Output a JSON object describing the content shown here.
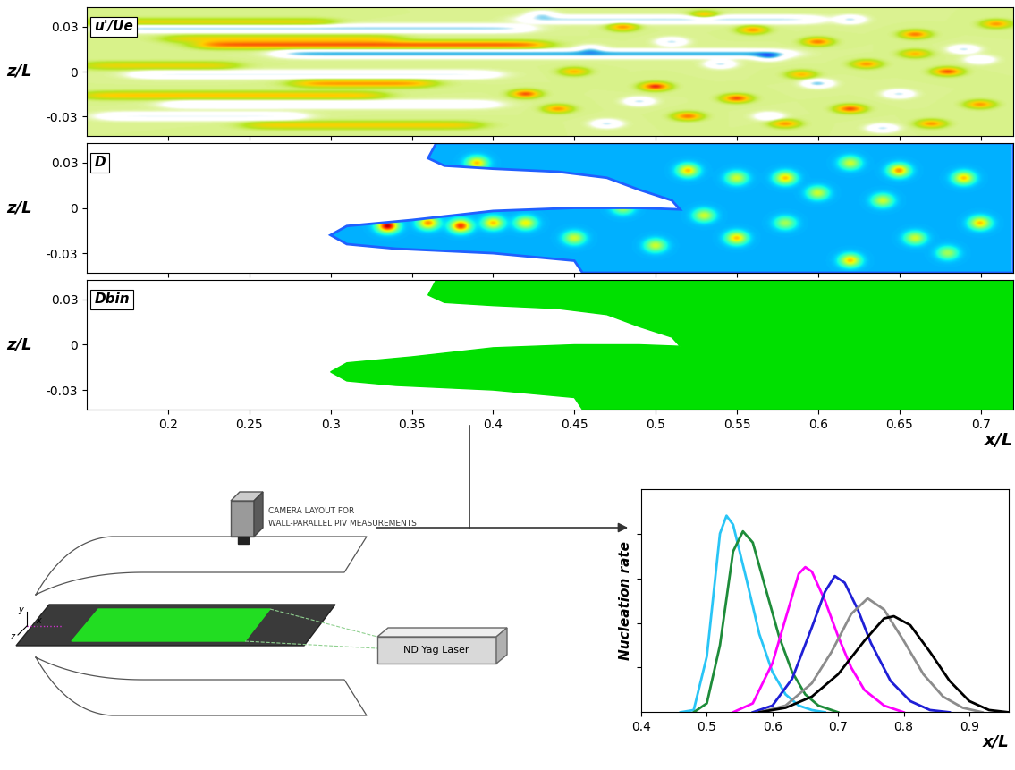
{
  "chart_data": [
    {
      "type": "contour",
      "label": "u'/Ue",
      "ylabel": "z/L",
      "xlim": [
        0.15,
        0.72
      ],
      "ylim": [
        -0.043,
        0.043
      ],
      "xticks": [
        0.2,
        0.25,
        0.3,
        0.35,
        0.4,
        0.45,
        0.5,
        0.55,
        0.6,
        0.65,
        0.7
      ],
      "yticks": [
        -0.03,
        0,
        0.03
      ],
      "tick_labels": "y",
      "streaks": [
        [
          0.15,
          0.3,
          0.033,
          0.35
        ],
        [
          0.16,
          0.42,
          0.029,
          -0.55
        ],
        [
          0.2,
          0.34,
          0.022,
          0.35
        ],
        [
          0.22,
          0.43,
          0.018,
          0.75
        ],
        [
          0.27,
          0.58,
          0.012,
          -0.7
        ],
        [
          0.15,
          0.24,
          0.004,
          0.35
        ],
        [
          0.18,
          0.4,
          -0.002,
          -0.45
        ],
        [
          0.28,
          0.36,
          -0.008,
          0.6
        ],
        [
          0.15,
          0.33,
          -0.016,
          0.45
        ],
        [
          0.2,
          0.4,
          -0.022,
          -0.4
        ],
        [
          0.16,
          0.28,
          -0.03,
          -0.45
        ],
        [
          0.25,
          0.39,
          -0.036,
          0.4
        ],
        [
          0.42,
          0.6,
          0.035,
          -0.5
        ]
      ],
      "spots": [
        [
          0.42,
          -0.015,
          0.8
        ],
        [
          0.44,
          -0.025,
          0.6
        ],
        [
          0.45,
          0.0,
          0.5
        ],
        [
          0.47,
          -0.035,
          -0.5
        ],
        [
          0.48,
          0.03,
          0.6
        ],
        [
          0.5,
          -0.01,
          0.9
        ],
        [
          0.51,
          0.02,
          -0.5
        ],
        [
          0.52,
          -0.03,
          0.7
        ],
        [
          0.54,
          0.005,
          -0.5
        ],
        [
          0.55,
          -0.018,
          0.8
        ],
        [
          0.56,
          0.028,
          0.6
        ],
        [
          0.57,
          0.01,
          -0.5
        ],
        [
          0.58,
          -0.035,
          0.6
        ],
        [
          0.6,
          0.02,
          0.7
        ],
        [
          0.6,
          -0.008,
          -0.6
        ],
        [
          0.62,
          0.035,
          -0.5
        ],
        [
          0.62,
          -0.025,
          0.8
        ],
        [
          0.63,
          0.005,
          0.6
        ],
        [
          0.65,
          -0.015,
          -0.5
        ],
        [
          0.66,
          0.025,
          0.7
        ],
        [
          0.67,
          -0.035,
          0.6
        ],
        [
          0.68,
          0.0,
          0.8
        ],
        [
          0.69,
          0.015,
          -0.5
        ],
        [
          0.7,
          -0.022,
          0.6
        ],
        [
          0.71,
          0.032,
          0.6
        ],
        [
          0.46,
          0.015,
          -0.4
        ],
        [
          0.53,
          0.038,
          0.5
        ],
        [
          0.59,
          -0.002,
          0.5
        ],
        [
          0.64,
          -0.038,
          -0.5
        ],
        [
          0.7,
          0.008,
          -0.4
        ],
        [
          0.43,
          0.038,
          -0.4
        ],
        [
          0.49,
          -0.02,
          -0.5
        ],
        [
          0.57,
          -0.03,
          -0.4
        ],
        [
          0.66,
          0.012,
          0.5
        ]
      ]
    },
    {
      "type": "contour",
      "label": "D",
      "ylabel": "z/L",
      "xlim": [
        0.15,
        0.72
      ],
      "ylim": [
        -0.043,
        0.043
      ],
      "xticks": [
        0.2,
        0.25,
        0.3,
        0.35,
        0.4,
        0.45,
        0.5,
        0.55,
        0.6,
        0.65,
        0.7
      ],
      "yticks": [
        -0.03,
        0,
        0.03
      ],
      "tick_labels": "y",
      "base": 0.3,
      "region": [
        [
          0.365,
          0.043
        ],
        [
          0.72,
          0.043
        ],
        [
          0.72,
          -0.043
        ],
        [
          0.455,
          -0.043
        ],
        [
          0.45,
          -0.035
        ],
        [
          0.4,
          -0.03
        ],
        [
          0.34,
          -0.027
        ],
        [
          0.31,
          -0.024
        ],
        [
          0.3,
          -0.018
        ],
        [
          0.31,
          -0.012
        ],
        [
          0.35,
          -0.008
        ],
        [
          0.4,
          -0.002
        ],
        [
          0.45,
          0.0
        ],
        [
          0.49,
          0.0
        ],
        [
          0.515,
          -0.001
        ],
        [
          0.51,
          0.005
        ],
        [
          0.49,
          0.012
        ],
        [
          0.47,
          0.02
        ],
        [
          0.44,
          0.024
        ],
        [
          0.4,
          0.026
        ],
        [
          0.37,
          0.028
        ],
        [
          0.36,
          0.033
        ]
      ],
      "spots": [
        [
          0.335,
          -0.012,
          0.65
        ],
        [
          0.36,
          -0.01,
          0.45
        ],
        [
          0.38,
          -0.012,
          0.55
        ],
        [
          0.4,
          -0.01,
          0.4
        ],
        [
          0.42,
          -0.01,
          0.35
        ],
        [
          0.39,
          0.03,
          0.4
        ],
        [
          0.45,
          -0.02,
          0.3
        ],
        [
          0.52,
          0.025,
          0.4
        ],
        [
          0.55,
          0.02,
          0.3
        ],
        [
          0.58,
          0.02,
          0.4
        ],
        [
          0.62,
          0.03,
          0.3
        ],
        [
          0.65,
          0.025,
          0.45
        ],
        [
          0.6,
          0.01,
          0.3
        ],
        [
          0.69,
          0.02,
          0.4
        ],
        [
          0.5,
          -0.025,
          0.3
        ],
        [
          0.55,
          -0.02,
          0.4
        ],
        [
          0.58,
          -0.01,
          0.25
        ],
        [
          0.62,
          -0.035,
          0.4
        ],
        [
          0.66,
          -0.02,
          0.3
        ],
        [
          0.7,
          -0.01,
          0.4
        ],
        [
          0.53,
          -0.005,
          0.3
        ],
        [
          0.48,
          0.0,
          0.25
        ],
        [
          0.64,
          0.005,
          0.3
        ],
        [
          0.68,
          -0.03,
          0.25
        ]
      ]
    },
    {
      "type": "region",
      "label": "Dbin",
      "ylabel": "z/L",
      "xlabel": "x/L",
      "color": "#00e000",
      "xlim": [
        0.15,
        0.72
      ],
      "ylim": [
        -0.043,
        0.043
      ],
      "xticks": [
        0.2,
        0.25,
        0.3,
        0.35,
        0.4,
        0.45,
        0.5,
        0.55,
        0.6,
        0.65,
        0.7
      ],
      "yticks": [
        -0.03,
        0,
        0.03
      ],
      "region": [
        [
          0.365,
          0.043
        ],
        [
          0.72,
          0.043
        ],
        [
          0.72,
          -0.043
        ],
        [
          0.455,
          -0.043
        ],
        [
          0.45,
          -0.035
        ],
        [
          0.4,
          -0.03
        ],
        [
          0.34,
          -0.027
        ],
        [
          0.31,
          -0.024
        ],
        [
          0.3,
          -0.018
        ],
        [
          0.31,
          -0.012
        ],
        [
          0.35,
          -0.008
        ],
        [
          0.4,
          -0.002
        ],
        [
          0.45,
          0.0
        ],
        [
          0.49,
          0.0
        ],
        [
          0.515,
          -0.001
        ],
        [
          0.51,
          0.005
        ],
        [
          0.49,
          0.012
        ],
        [
          0.47,
          0.02
        ],
        [
          0.44,
          0.024
        ],
        [
          0.4,
          0.026
        ],
        [
          0.37,
          0.028
        ],
        [
          0.36,
          0.033
        ]
      ]
    },
    {
      "type": "line",
      "ylabel": "Nucleation rate",
      "xlabel": "x/L",
      "xlim": [
        0.4,
        0.96
      ],
      "ylim": [
        0,
        1
      ],
      "xticks": [
        0.4,
        0.5,
        0.6,
        0.7,
        0.8,
        0.9
      ],
      "yticks": [
        0.2,
        0.4,
        0.6,
        0.8
      ],
      "tick_labels": "x",
      "series": [
        {
          "color": "#29c5f6",
          "x": [
            0.46,
            0.48,
            0.5,
            0.52,
            0.53,
            0.54,
            0.56,
            0.58,
            0.6,
            0.62,
            0.64,
            0.66,
            0.68
          ],
          "values": [
            0,
            0.01,
            0.25,
            0.8,
            0.88,
            0.84,
            0.6,
            0.35,
            0.18,
            0.08,
            0.03,
            0.01,
            0
          ]
        },
        {
          "color": "#1e8c3a",
          "x": [
            0.48,
            0.5,
            0.52,
            0.54,
            0.555,
            0.57,
            0.59,
            0.61,
            0.63,
            0.65,
            0.67,
            0.7
          ],
          "values": [
            0,
            0.04,
            0.3,
            0.72,
            0.81,
            0.76,
            0.55,
            0.34,
            0.18,
            0.08,
            0.03,
            0
          ]
        },
        {
          "color": "#ff00ff",
          "x": [
            0.54,
            0.57,
            0.6,
            0.62,
            0.64,
            0.65,
            0.66,
            0.68,
            0.7,
            0.72,
            0.74,
            0.77,
            0.8
          ],
          "values": [
            0,
            0.04,
            0.22,
            0.42,
            0.62,
            0.65,
            0.63,
            0.5,
            0.34,
            0.2,
            0.1,
            0.03,
            0
          ]
        },
        {
          "color": "#1f1fd6",
          "x": [
            0.57,
            0.6,
            0.63,
            0.66,
            0.68,
            0.695,
            0.71,
            0.73,
            0.75,
            0.78,
            0.81,
            0.84,
            0.87
          ],
          "values": [
            0,
            0.03,
            0.15,
            0.38,
            0.54,
            0.61,
            0.58,
            0.46,
            0.31,
            0.14,
            0.05,
            0.01,
            0
          ]
        },
        {
          "color": "#8c8c8c",
          "x": [
            0.58,
            0.62,
            0.66,
            0.69,
            0.72,
            0.745,
            0.77,
            0.8,
            0.83,
            0.86,
            0.89,
            0.92
          ],
          "values": [
            0,
            0.03,
            0.13,
            0.27,
            0.44,
            0.51,
            0.46,
            0.32,
            0.17,
            0.07,
            0.02,
            0
          ]
        },
        {
          "color": "#000000",
          "x": [
            0.58,
            0.62,
            0.66,
            0.7,
            0.74,
            0.77,
            0.785,
            0.81,
            0.84,
            0.87,
            0.9,
            0.93,
            0.96
          ],
          "values": [
            0,
            0.02,
            0.07,
            0.17,
            0.32,
            0.42,
            0.43,
            0.39,
            0.27,
            0.14,
            0.05,
            0.01,
            0
          ]
        }
      ]
    }
  ],
  "schematic": {
    "camera_label": [
      "CAMERA LAYOUT FOR",
      "WALL-PARALLEL PIV MEASUREMENTS"
    ],
    "laser_label": "ND Yag Laser",
    "axis_labels": [
      "y",
      "x",
      "z"
    ]
  }
}
